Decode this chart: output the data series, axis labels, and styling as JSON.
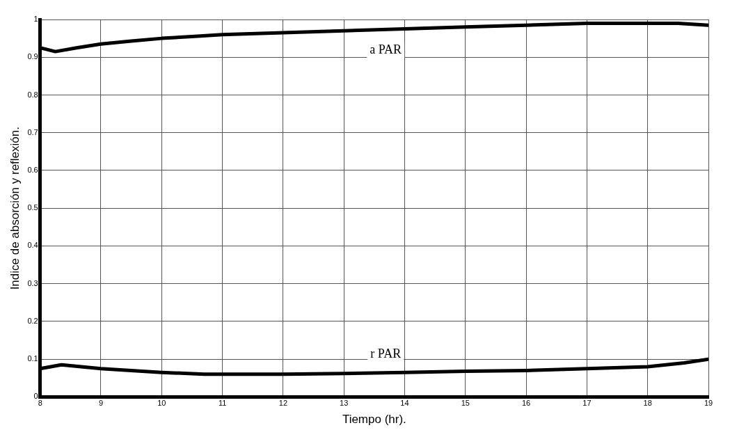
{
  "chart_data": {
    "type": "line",
    "xlabel": "Tiempo (hr).",
    "ylabel": "Indice de absorción y reflexión.",
    "xlim": [
      8,
      19
    ],
    "xticks": [
      8,
      9,
      10,
      11,
      12,
      13,
      14,
      15,
      16,
      17,
      18,
      19
    ],
    "ylim": [
      0,
      1
    ],
    "yticks": [
      0,
      0.1,
      0.2,
      0.3,
      0.4,
      0.5,
      0.6,
      0.7,
      0.8,
      0.9,
      1
    ],
    "grid": true,
    "legend": false,
    "marker": "none",
    "line_style": "solid",
    "series": [
      {
        "name": "a PAR",
        "color": "#000000",
        "x": [
          8,
          8.25,
          8.6,
          9,
          9.5,
          10,
          10.5,
          11,
          12,
          13,
          14,
          15,
          16,
          17,
          17.5,
          18,
          18.5,
          19
        ],
        "values": [
          0.925,
          0.915,
          0.925,
          0.935,
          0.943,
          0.95,
          0.955,
          0.96,
          0.965,
          0.97,
          0.975,
          0.98,
          0.985,
          0.99,
          0.99,
          0.99,
          0.99,
          0.985
        ]
      },
      {
        "name": "r PAR",
        "color": "#000000",
        "x": [
          8,
          8.35,
          9,
          9.5,
          10,
          10.7,
          11,
          12,
          13,
          14,
          15,
          16,
          17,
          18,
          18.6,
          19
        ],
        "values": [
          0.075,
          0.085,
          0.075,
          0.07,
          0.065,
          0.06,
          0.06,
          0.06,
          0.062,
          0.065,
          0.068,
          0.07,
          0.075,
          0.08,
          0.09,
          0.1
        ]
      }
    ]
  }
}
